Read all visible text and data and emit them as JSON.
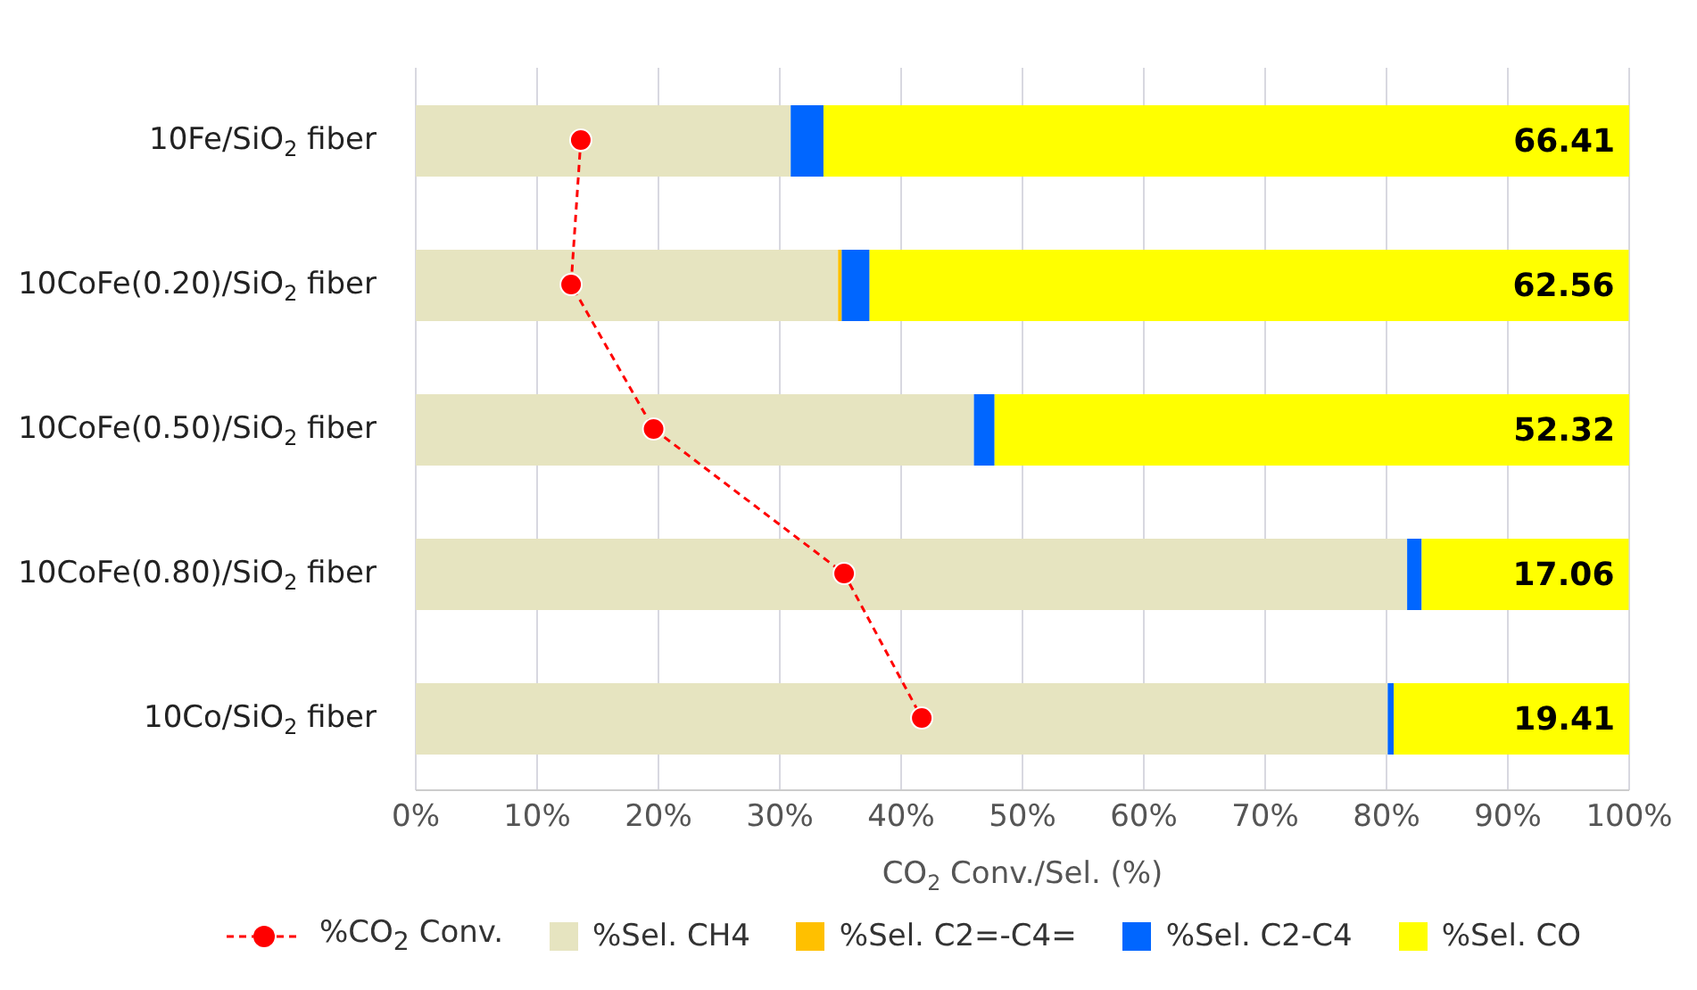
{
  "chart_data": {
    "type": "bar",
    "orientation": "horizontal",
    "stacked": true,
    "categories": [
      "10Fe/SiO$_{2}$ fiber",
      "10CoFe(0.20)/SiO$_{2}$ fiber",
      "10CoFe(0.50)/SiO$_{2}$ fiber",
      "10CoFe(0.80)/SiO$_{2}$ fiber",
      "10Co/SiO$_{2}$ fiber"
    ],
    "series": [
      {
        "name": "%CO$_{2}$ Conv.",
        "type": "line",
        "color": "#ff0000",
        "marker": "circle",
        "line_style": "dashed",
        "values": [
          13.6,
          12.8,
          19.6,
          35.3,
          41.7
        ]
      },
      {
        "name": "%Sel. CH4",
        "color": "#e6e4c0",
        "values": [
          30.9,
          34.8,
          46.0,
          81.7,
          80.1
        ]
      },
      {
        "name": "%Sel. C2=-C4=",
        "color": "#ffc000",
        "values": [
          0,
          0.3,
          0,
          0,
          0
        ]
      },
      {
        "name": "%Sel. C2-C4",
        "color": "#0066ff",
        "values": [
          2.7,
          2.3,
          1.7,
          1.2,
          0.5
        ]
      },
      {
        "name": "%Sel. CO",
        "color": "#ffff00",
        "values": [
          66.41,
          62.56,
          52.32,
          17.06,
          19.41
        ],
        "value_labels": [
          "66.41",
          "62.56",
          "52.32",
          "17.06",
          "19.41"
        ]
      }
    ],
    "xlabel": "CO$_{2}$ Conv./Sel. (%)",
    "xlim": [
      0,
      100
    ],
    "xticks": [
      {
        "value": 0,
        "label": "0%"
      },
      {
        "value": 10,
        "label": "10%"
      },
      {
        "value": 20,
        "label": "20%"
      },
      {
        "value": 30,
        "label": "30%"
      },
      {
        "value": 40,
        "label": "40%"
      },
      {
        "value": 50,
        "label": "50%"
      },
      {
        "value": 60,
        "label": "60%"
      },
      {
        "value": 70,
        "label": "70%"
      },
      {
        "value": 80,
        "label": "80%"
      },
      {
        "value": 90,
        "label": "90%"
      },
      {
        "value": 100,
        "label": "100%"
      }
    ],
    "grid": "x",
    "legend": "bottom"
  }
}
